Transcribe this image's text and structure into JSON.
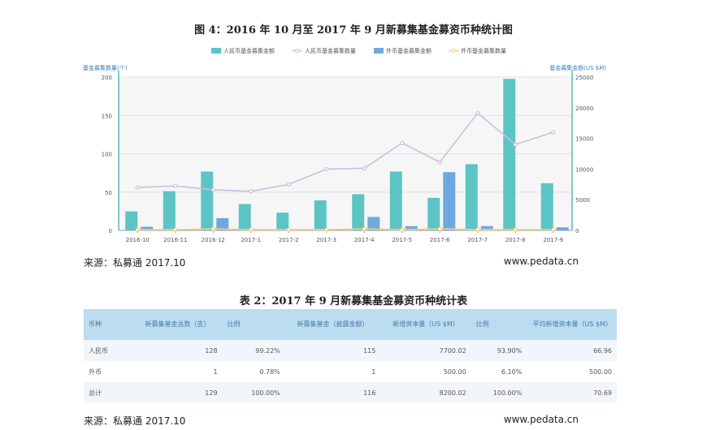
{
  "figure_title": "图 4：2016 年 10 月至 2017 年 9 月新募集基金募资币种统计图",
  "source_text": "来源：私募通 2017.10",
  "site_text": "www.pedata.cn",
  "table_title": "表 2：2017 年 9 月新募集基金募资币种统计表",
  "chart_data": {
    "type": "bar",
    "left_axis_label": "基金募集数量(个)",
    "right_axis_label": "基金募集金额(US $M)",
    "categories": [
      "2016-10",
      "2016-11",
      "2016-12",
      "2017-1",
      "2017-2",
      "2017-3",
      "2017-4",
      "2017-5",
      "2017-6",
      "2017-7",
      "2017-8",
      "2017-9"
    ],
    "yleft_ticks": [
      "0",
      "50",
      "100",
      "150",
      "200"
    ],
    "yright_ticks": [
      "0",
      "5000",
      "10000",
      "15000",
      "20000",
      "25000"
    ],
    "yleft_lim": [
      0,
      200
    ],
    "yright_lim": [
      0,
      25000
    ],
    "legend_position": "top-center",
    "series": [
      {
        "name": "人民币基金募集金额",
        "kind": "bar",
        "axis": "right",
        "color": "#5cc4c4",
        "values": [
          3100,
          6400,
          9600,
          4300,
          2900,
          4900,
          5900,
          9600,
          5300,
          10800,
          24700,
          7700
        ]
      },
      {
        "name": "人民币基金募集数量",
        "kind": "line",
        "axis": "left",
        "color": "#c8c0dd",
        "values": [
          56,
          58,
          53,
          51,
          60,
          80,
          81,
          114,
          89,
          153,
          112,
          128
        ]
      },
      {
        "name": "外币基金募集金额",
        "kind": "bar",
        "axis": "right",
        "color": "#6fa8e0",
        "values": [
          600,
          100,
          2000,
          50,
          100,
          200,
          2200,
          700,
          9500,
          700,
          200,
          500
        ]
      },
      {
        "name": "外币基金募集数量",
        "kind": "line",
        "axis": "left",
        "color": "#f0d27a",
        "values": [
          1,
          1,
          2,
          1,
          1,
          1,
          2,
          1,
          2,
          1,
          1,
          1
        ]
      }
    ]
  },
  "table": {
    "headers": [
      "币种",
      "新募集基金总数（支）",
      "比例",
      "新募集基金（披露金额）",
      "新增资本量（US $M）",
      "比例",
      "平均新增资本量（US $M）"
    ],
    "rows": [
      [
        "人民币",
        "128",
        "99.22%",
        "115",
        "7700.02",
        "93.90%",
        "66.96"
      ],
      [
        "外币",
        "1",
        "0.78%",
        "1",
        "500.00",
        "6.10%",
        "500.00"
      ],
      [
        "总计",
        "129",
        "100.00%",
        "116",
        "8200.02",
        "100.00%",
        "70.69"
      ]
    ]
  }
}
